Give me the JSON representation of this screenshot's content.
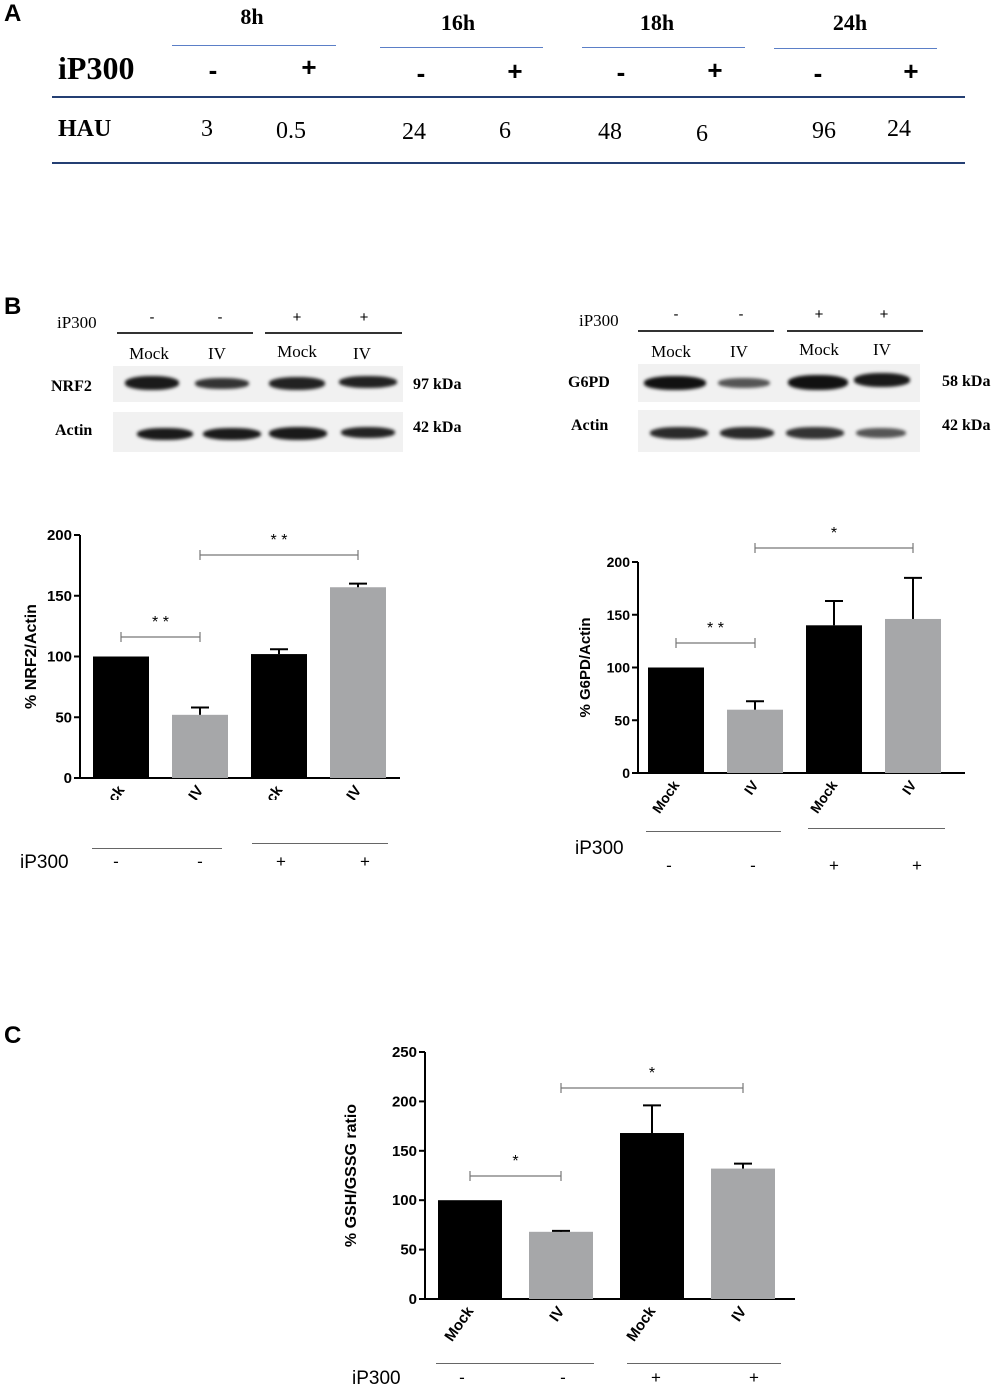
{
  "panel_a": {
    "letter": "A",
    "row_label_treatment": "iP300",
    "row_label_value": "HAU",
    "timepoints": [
      {
        "label": "8h",
        "minus": "-",
        "plus": "+",
        "hau_minus": "3",
        "hau_plus": "0.5"
      },
      {
        "label": "16h",
        "minus": "-",
        "plus": "+",
        "hau_minus": "24",
        "hau_plus": "6"
      },
      {
        "label": "18h",
        "minus": "-",
        "plus": "+",
        "hau_minus": "48",
        "hau_plus": "6"
      },
      {
        "label": "24h",
        "minus": "-",
        "plus": "+",
        "hau_minus": "96",
        "hau_plus": "24"
      }
    ]
  },
  "panel_b": {
    "letter": "B",
    "blot_left": {
      "treatment_label": "iP300",
      "signs": [
        "-",
        "-",
        "+",
        "+"
      ],
      "lanes": [
        "Mock",
        "IV",
        "Mock",
        "IV"
      ],
      "rows": [
        {
          "label": "NRF2",
          "kda": "97 kDa",
          "intensity": [
            0.85,
            0.7,
            0.8,
            0.8
          ]
        },
        {
          "label": "Actin",
          "kda": "42 kDa",
          "intensity": [
            0.85,
            0.85,
            0.85,
            0.85
          ]
        }
      ]
    },
    "blot_right": {
      "treatment_label": "iP300",
      "signs": [
        "-",
        "-",
        "+",
        "+"
      ],
      "lanes": [
        "Mock",
        "IV",
        "Mock",
        "IV"
      ],
      "rows": [
        {
          "label": "G6PD",
          "kda": "58 kDa",
          "intensity": [
            0.9,
            0.5,
            0.9,
            0.85
          ]
        },
        {
          "label": "Actin",
          "kda": "42 kDa",
          "intensity": [
            0.8,
            0.8,
            0.75,
            0.55
          ]
        }
      ]
    }
  },
  "panel_c": {
    "letter": "C"
  },
  "conditions": {
    "label": "iP300",
    "signs": [
      "-",
      "-",
      "+",
      "+"
    ]
  },
  "chart_data": [
    {
      "type": "bar",
      "ylabel": "% NRF2/Actin",
      "categories": [
        "Mock",
        "IV",
        "Mock",
        "IV"
      ],
      "values": [
        100,
        52,
        102,
        157
      ],
      "errors": [
        0,
        6,
        4,
        3
      ],
      "colors": [
        "#000000",
        "#a6a7a9",
        "#000000",
        "#a6a7a9"
      ],
      "ylim": [
        0,
        200
      ],
      "yticks": [
        "0",
        "50",
        "100",
        "150",
        "200"
      ],
      "significance": [
        {
          "from": 0,
          "to": 1,
          "label": "* *"
        },
        {
          "from": 1,
          "to": 3,
          "label": "* *"
        }
      ]
    },
    {
      "type": "bar",
      "ylabel": "% G6PD/Actin",
      "categories": [
        "Mock",
        "IV",
        "Mock",
        "IV"
      ],
      "values": [
        100,
        60,
        140,
        146
      ],
      "errors": [
        0,
        8,
        23,
        39
      ],
      "colors": [
        "#000000",
        "#a6a7a9",
        "#000000",
        "#a6a7a9"
      ],
      "ylim": [
        0,
        200
      ],
      "yticks": [
        "0",
        "50",
        "100",
        "150",
        "200"
      ],
      "significance": [
        {
          "from": 0,
          "to": 1,
          "label": "* *"
        },
        {
          "from": 1,
          "to": 3,
          "label": "*"
        }
      ]
    },
    {
      "type": "bar",
      "ylabel": "% GSH/GSSG ratio",
      "categories": [
        "Mock",
        "IV",
        "Mock",
        "IV"
      ],
      "values": [
        100,
        68,
        168,
        132
      ],
      "errors": [
        0,
        1,
        28,
        5
      ],
      "colors": [
        "#000000",
        "#a6a7a9",
        "#000000",
        "#a6a7a9"
      ],
      "ylim": [
        0,
        250
      ],
      "yticks": [
        "0",
        "50",
        "100",
        "150",
        "200",
        "250"
      ],
      "significance": [
        {
          "from": 0,
          "to": 1,
          "label": "*"
        },
        {
          "from": 1,
          "to": 3,
          "label": "*"
        }
      ]
    }
  ]
}
